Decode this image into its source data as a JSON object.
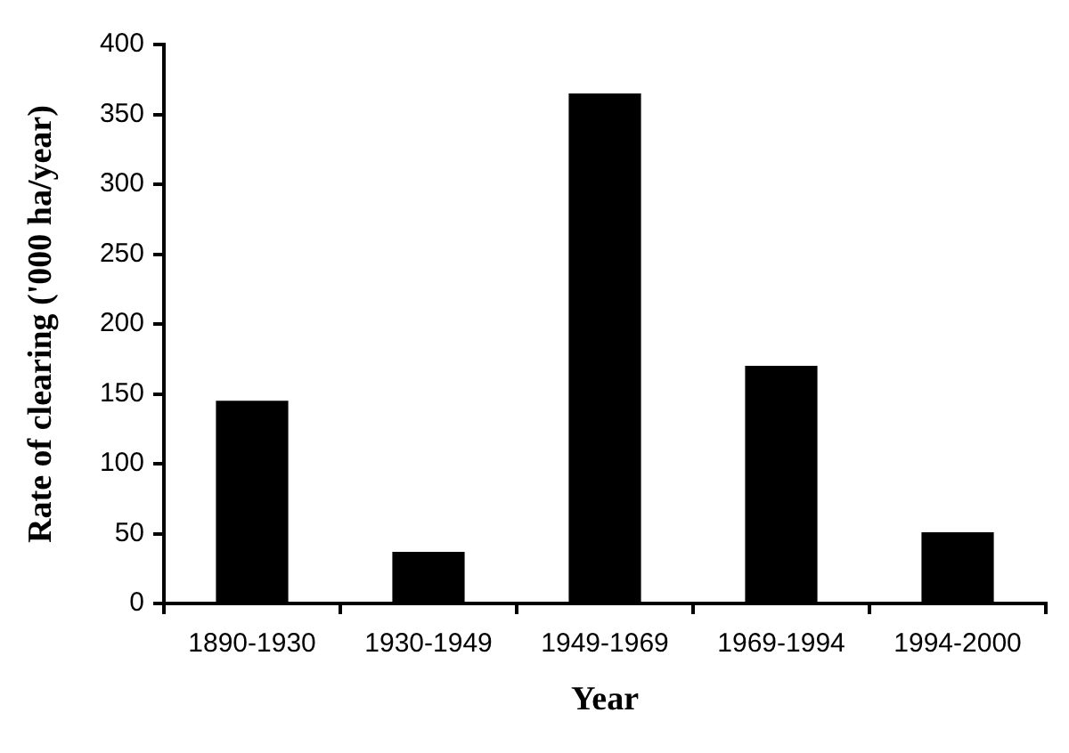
{
  "chart_data": {
    "type": "bar",
    "xlabel": "Year",
    "ylabel": "Rate of clearing ('000 ha/year)",
    "categories": [
      "1890-1930",
      "1930-1949",
      "1949-1969",
      "1969-1994",
      "1994-2000"
    ],
    "values": [
      145,
      37,
      365,
      170,
      51
    ],
    "color": "#000000",
    "ylim": [
      0,
      400
    ],
    "yticks": [
      0,
      50,
      100,
      150,
      200,
      250,
      300,
      350,
      400
    ]
  }
}
